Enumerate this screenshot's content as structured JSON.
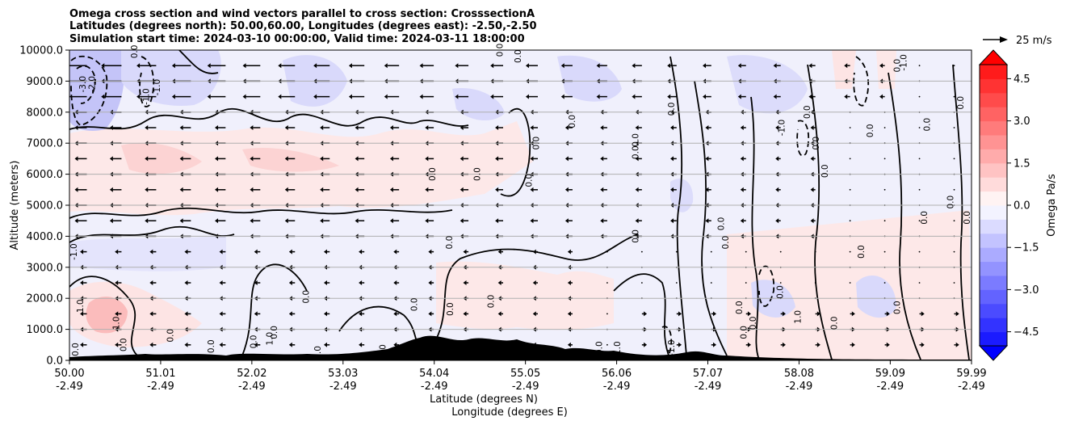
{
  "chart_data": {
    "type": "contour",
    "title_lines": [
      "Omega cross section and wind vectors parallel to cross section: CrosssectionA",
      "Latitudes (degrees north): 50.00,60.00, Longitudes (degrees east): -2.50,-2.50",
      "Simulation start time: 2024-03-10 00:00:00, Valid time: 2024-03-11 18:00:00"
    ],
    "ylabel": "Altitude (meters)",
    "xlabel_lines": [
      "Latitude (degrees N)",
      "Longitude (degrees E)"
    ],
    "ylim": [
      0,
      10000
    ],
    "y_ticks": [
      0,
      1000,
      2000,
      3000,
      4000,
      5000,
      6000,
      7000,
      8000,
      9000,
      10000
    ],
    "y_tick_labels": [
      "0.0",
      "1000.0",
      "2000.0",
      "3000.0",
      "4000.0",
      "5000.0",
      "6000.0",
      "7000.0",
      "8000.0",
      "9000.0",
      "10000.0"
    ],
    "x_range": [
      50.0,
      59.99
    ],
    "x_ticks": [
      {
        "lat": "50.00",
        "lon": "-2.49",
        "value": 50.0
      },
      {
        "lat": "51.01",
        "lon": "-2.49",
        "value": 51.01
      },
      {
        "lat": "52.02",
        "lon": "-2.49",
        "value": 52.02
      },
      {
        "lat": "53.03",
        "lon": "-2.49",
        "value": 53.03
      },
      {
        "lat": "54.04",
        "lon": "-2.49",
        "value": 54.04
      },
      {
        "lat": "55.05",
        "lon": "-2.49",
        "value": 55.05
      },
      {
        "lat": "56.06",
        "lon": "-2.49",
        "value": 56.06
      },
      {
        "lat": "57.07",
        "lon": "-2.49",
        "value": 57.07
      },
      {
        "lat": "58.08",
        "lon": "-2.49",
        "value": 58.08
      },
      {
        "lat": "59.09",
        "lon": "-2.49",
        "value": 59.09
      },
      {
        "lat": "59.99",
        "lon": "-2.49",
        "value": 59.99
      }
    ],
    "grid": "horizontal",
    "colorbar": {
      "label": "Omega Pa/s",
      "range": [
        -5.0,
        5.0
      ],
      "ticks": [
        -4.5,
        -3.0,
        -1.5,
        0.0,
        1.5,
        3.0,
        4.5
      ],
      "tick_labels": [
        "−4.5",
        "−3.0",
        "−1.5",
        "0.0",
        "1.5",
        "3.0",
        "4.5"
      ],
      "levels": [
        -5.0,
        -4.5,
        -4.0,
        -3.5,
        -3.0,
        -2.5,
        -2.0,
        -1.5,
        -1.0,
        -0.5,
        0.0,
        0.5,
        1.0,
        1.5,
        2.0,
        2.5,
        3.0,
        3.5,
        4.0,
        4.5,
        5.0
      ],
      "extend": "both",
      "colormap": "bwr"
    },
    "vector_key": {
      "value": 25,
      "label": "25 m/s"
    },
    "contour_labels": [
      {
        "text": "0.0",
        "lat": 50.1,
        "z": 350
      },
      {
        "text": "1.0",
        "lat": 50.15,
        "z": 1750
      },
      {
        "text": "-1.0",
        "lat": 50.08,
        "z": 3500
      },
      {
        "text": "-3.0",
        "lat": 50.18,
        "z": 8900
      },
      {
        "text": "-2.0",
        "lat": 50.28,
        "z": 8900
      },
      {
        "text": "0.0",
        "lat": 50.75,
        "z": 9950
      },
      {
        "text": "-1.0",
        "lat": 50.88,
        "z": 8500
      },
      {
        "text": "-1.0",
        "lat": 51.0,
        "z": 8800
      },
      {
        "text": "1.0",
        "lat": 50.55,
        "z": 1200
      },
      {
        "text": "0.0",
        "lat": 50.63,
        "z": 500
      },
      {
        "text": "0.0",
        "lat": 51.15,
        "z": 800
      },
      {
        "text": "0.0",
        "lat": 51.6,
        "z": 450
      },
      {
        "text": "0.0",
        "lat": 52.65,
        "z": 2050
      },
      {
        "text": "0.0",
        "lat": 52.07,
        "z": 600
      },
      {
        "text": "0.0",
        "lat": 52.3,
        "z": 900
      },
      {
        "text": "1.0",
        "lat": 52.25,
        "z": 700
      },
      {
        "text": "0.0",
        "lat": 52.78,
        "z": 250
      },
      {
        "text": "1.0",
        "lat": 53.5,
        "z": 300
      },
      {
        "text": "0.0",
        "lat": 53.85,
        "z": 1800
      },
      {
        "text": "0.0",
        "lat": 54.24,
        "z": 3800
      },
      {
        "text": "0.0",
        "lat": 54.05,
        "z": 6000
      },
      {
        "text": "0.0",
        "lat": 54.25,
        "z": 1650
      },
      {
        "text": "0.0",
        "lat": 54.55,
        "z": 6000
      },
      {
        "text": "0.0",
        "lat": 55.12,
        "z": 5800
      },
      {
        "text": "0.0",
        "lat": 54.8,
        "z": 10000
      },
      {
        "text": "0.0",
        "lat": 55.0,
        "z": 9800
      },
      {
        "text": "0.0",
        "lat": 54.7,
        "z": 1900
      },
      {
        "text": "0.0",
        "lat": 55.2,
        "z": 7000
      },
      {
        "text": "0.0",
        "lat": 55.6,
        "z": 7700
      },
      {
        "text": "0.0",
        "lat": 56.3,
        "z": 7100
      },
      {
        "text": "0.0",
        "lat": 56.3,
        "z": 6700
      },
      {
        "text": "0.0",
        "lat": 56.3,
        "z": 4000
      },
      {
        "text": "0.0",
        "lat": 56.7,
        "z": 8100
      },
      {
        "text": "0.0",
        "lat": 57.25,
        "z": 4400
      },
      {
        "text": "0.0",
        "lat": 57.3,
        "z": 3800
      },
      {
        "text": "0.0",
        "lat": 57.6,
        "z": 1200
      },
      {
        "text": "0.0",
        "lat": 57.45,
        "z": 1700
      },
      {
        "text": "0.0",
        "lat": 57.5,
        "z": 900
      },
      {
        "text": "-1.0",
        "lat": 57.92,
        "z": 7500
      },
      {
        "text": "1.0",
        "lat": 58.1,
        "z": 1400
      },
      {
        "text": "0.0",
        "lat": 58.2,
        "z": 8000
      },
      {
        "text": "0.0",
        "lat": 58.3,
        "z": 7000
      },
      {
        "text": "0.0",
        "lat": 58.8,
        "z": 3500
      },
      {
        "text": "0.0",
        "lat": 58.9,
        "z": 7400
      },
      {
        "text": "0.0",
        "lat": 59.2,
        "z": 9500
      },
      {
        "text": "-1.0",
        "lat": 59.27,
        "z": 9600
      },
      {
        "text": "0.0",
        "lat": 59.5,
        "z": 4600
      },
      {
        "text": "0.0",
        "lat": 59.53,
        "z": 7600
      },
      {
        "text": "0.0",
        "lat": 59.79,
        "z": 5100
      },
      {
        "text": "0.0",
        "lat": 59.97,
        "z": 4600
      },
      {
        "text": "0.0",
        "lat": 59.9,
        "z": 8300
      },
      {
        "text": "0.0",
        "lat": 59.2,
        "z": 1700
      },
      {
        "text": "0.0",
        "lat": 58.5,
        "z": 1200
      },
      {
        "text": "0.0",
        "lat": 57.9,
        "z": 2200
      },
      {
        "text": "1.0",
        "lat": 56.1,
        "z": 400
      },
      {
        "text": "-1.0",
        "lat": 56.7,
        "z": 400
      },
      {
        "text": "0.0",
        "lat": 55.9,
        "z": 400
      },
      {
        "text": "0.0",
        "lat": 58.4,
        "z": 6100
      }
    ]
  }
}
